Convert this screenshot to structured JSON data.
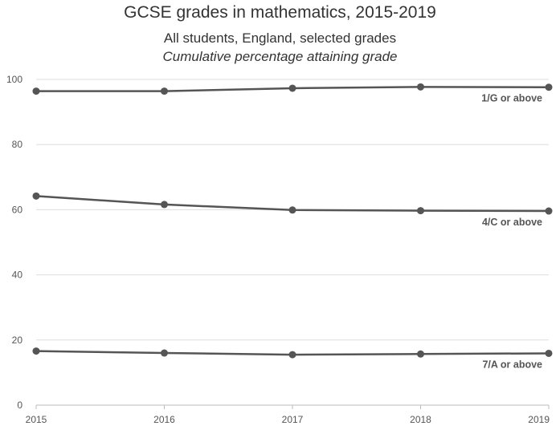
{
  "chart_data": {
    "type": "line",
    "title": "GCSE grades in mathematics, 2015-2019",
    "subtitle": "All students, England, selected grades",
    "subtitle2": "Cumulative percentage attaining grade",
    "xlabel": "",
    "ylabel": "",
    "x": [
      "2015",
      "2016",
      "2017",
      "2018",
      "2019"
    ],
    "ylim": [
      0,
      100
    ],
    "yticks": [
      0,
      20,
      40,
      60,
      80,
      100
    ],
    "grid": true,
    "line_color": "#555555",
    "grid_color": "#dddddd",
    "series": [
      {
        "name": "1/G or above",
        "values": [
          96.4,
          96.4,
          97.3,
          97.7,
          97.6
        ]
      },
      {
        "name": "4/C or above",
        "values": [
          64.2,
          61.6,
          59.9,
          59.7,
          59.6
        ]
      },
      {
        "name": "7/A or above",
        "values": [
          16.6,
          16.0,
          15.5,
          15.7,
          15.9
        ]
      }
    ]
  }
}
